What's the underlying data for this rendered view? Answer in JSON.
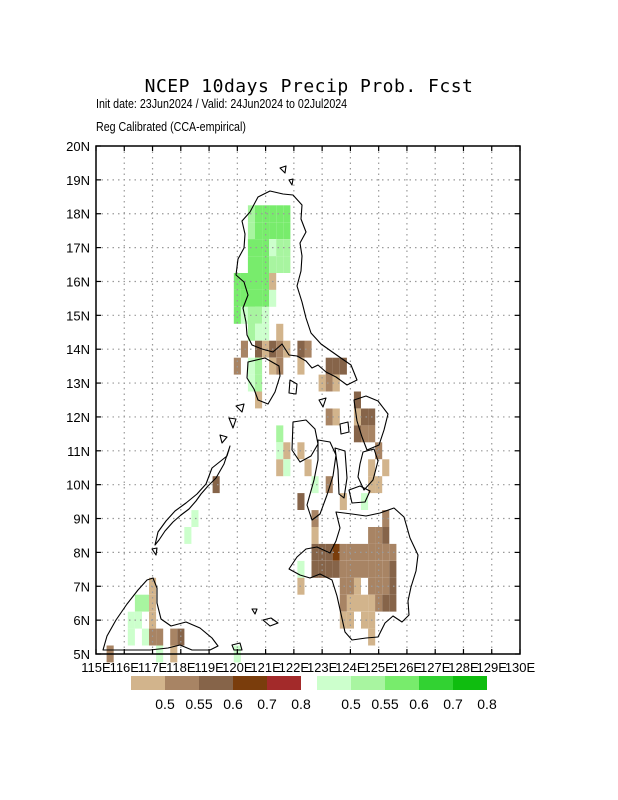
{
  "title": "NCEP 10days Precip Prob. Fcst",
  "subtitle_line1": "Init date: 23Jun2024 / Valid: 24Jun2024 to 02Jul2024",
  "subtitle_line2": "Reg Calibrated (CCA-empirical)",
  "map": {
    "lon_range": [
      115,
      130
    ],
    "lat_range": [
      5,
      20
    ],
    "lon_ticks": [
      "115E",
      "116E",
      "117E",
      "118E",
      "119E",
      "120E",
      "121E",
      "122E",
      "123E",
      "124E",
      "125E",
      "126E",
      "127E",
      "128E",
      "129E",
      "130E"
    ],
    "lat_ticks": [
      "5N",
      "6N",
      "7N",
      "8N",
      "9N",
      "10N",
      "11N",
      "12N",
      "13N",
      "14N",
      "15N",
      "16N",
      "17N",
      "18N",
      "19N",
      "20N"
    ],
    "grid": true
  },
  "dry_legend": {
    "labels": [
      "0.5",
      "0.55",
      "0.6",
      "0.7",
      "0.8"
    ],
    "colors": [
      "#d2b48c",
      "#a88464",
      "#866449",
      "#7a3d0c",
      "#a32a2a"
    ]
  },
  "wet_legend": {
    "labels": [
      "0.5",
      "0.55",
      "0.6",
      "0.7",
      "0.8"
    ],
    "colors": [
      "#ccffcc",
      "#a8f5a0",
      "#78ec6c",
      "#32d232",
      "#0fbd0f"
    ]
  },
  "cells_note_lon_lat_level": "cells: [lon, lat, category] where category 1..5 = dry legend index, -1..-5 = wet legend index",
  "cells": [
    [
      120.5,
      17.5,
      -2
    ],
    [
      120.5,
      17.0,
      -3
    ],
    [
      120.5,
      16.5,
      -3
    ],
    [
      120.5,
      16.0,
      -3
    ],
    [
      120.5,
      15.5,
      -3
    ],
    [
      120.5,
      15.0,
      -3
    ],
    [
      120.5,
      18.0,
      -2
    ],
    [
      120.75,
      18.0,
      -3
    ],
    [
      121.0,
      18.0,
      -3
    ],
    [
      121.25,
      18.0,
      -3
    ],
    [
      121.5,
      18.0,
      -3
    ],
    [
      121.75,
      18.0,
      -3
    ],
    [
      120.75,
      17.5,
      -3
    ],
    [
      121.0,
      17.5,
      -3
    ],
    [
      121.25,
      17.5,
      -3
    ],
    [
      121.5,
      17.5,
      -3
    ],
    [
      121.75,
      17.5,
      -3
    ],
    [
      120.75,
      17.0,
      -3
    ],
    [
      121.0,
      17.0,
      -3
    ],
    [
      121.25,
      17.0,
      -1
    ],
    [
      121.5,
      17.0,
      -2
    ],
    [
      121.75,
      17.0,
      -2
    ],
    [
      120.75,
      16.5,
      -3
    ],
    [
      121.0,
      16.5,
      -3
    ],
    [
      121.25,
      16.5,
      -2
    ],
    [
      121.5,
      16.5,
      -2
    ],
    [
      121.75,
      16.5,
      -2
    ],
    [
      120.0,
      16.0,
      -3
    ],
    [
      120.25,
      16.0,
      -3
    ],
    [
      120.75,
      16.0,
      -3
    ],
    [
      121.0,
      16.0,
      -3
    ],
    [
      121.25,
      16.0,
      1
    ],
    [
      120.0,
      15.5,
      -3
    ],
    [
      120.25,
      15.5,
      -3
    ],
    [
      120.75,
      15.5,
      -3
    ],
    [
      121.0,
      15.5,
      -3
    ],
    [
      121.25,
      15.5,
      -1
    ],
    [
      120.0,
      15.0,
      -3
    ],
    [
      120.25,
      15.0,
      -1
    ],
    [
      120.5,
      15.0,
      -2
    ],
    [
      120.75,
      15.0,
      -2
    ],
    [
      121.0,
      15.0,
      -1
    ],
    [
      120.5,
      14.5,
      -2
    ],
    [
      120.75,
      14.5,
      -1
    ],
    [
      121.0,
      14.5,
      -1
    ],
    [
      121.5,
      14.5,
      1
    ],
    [
      120.25,
      14.0,
      2
    ],
    [
      120.75,
      14.0,
      3
    ],
    [
      121.0,
      14.0,
      1
    ],
    [
      121.25,
      14.0,
      3
    ],
    [
      121.5,
      14.0,
      2
    ],
    [
      121.75,
      14.0,
      1
    ],
    [
      122.25,
      14.0,
      3
    ],
    [
      122.5,
      14.0,
      2
    ],
    [
      120.0,
      13.5,
      2
    ],
    [
      120.5,
      13.5,
      -1
    ],
    [
      120.75,
      13.5,
      -2
    ],
    [
      121.25,
      13.5,
      1
    ],
    [
      121.5,
      13.5,
      2
    ],
    [
      122.25,
      13.5,
      1
    ],
    [
      123.25,
      13.5,
      3
    ],
    [
      123.5,
      13.5,
      3
    ],
    [
      123.75,
      13.5,
      3
    ],
    [
      120.5,
      13.0,
      -1
    ],
    [
      120.75,
      13.0,
      -2
    ],
    [
      123.0,
      13.0,
      1
    ],
    [
      123.25,
      13.0,
      2
    ],
    [
      123.5,
      13.0,
      1
    ],
    [
      120.75,
      12.5,
      1
    ],
    [
      124.25,
      12.5,
      3
    ],
    [
      123.25,
      12.0,
      2
    ],
    [
      123.5,
      12.0,
      1
    ],
    [
      124.25,
      12.0,
      1
    ],
    [
      124.5,
      12.0,
      3
    ],
    [
      124.75,
      12.0,
      3
    ],
    [
      124.25,
      11.5,
      3
    ],
    [
      124.5,
      11.5,
      2
    ],
    [
      124.75,
      11.5,
      2
    ],
    [
      121.5,
      11.5,
      -2
    ],
    [
      121.5,
      11.0,
      -1
    ],
    [
      121.75,
      11.0,
      1
    ],
    [
      122.25,
      11.0,
      1
    ],
    [
      125.0,
      11.0,
      2
    ],
    [
      121.5,
      10.5,
      1
    ],
    [
      121.75,
      10.5,
      -1
    ],
    [
      122.5,
      10.5,
      1
    ],
    [
      124.75,
      10.5,
      1
    ],
    [
      125.25,
      10.5,
      1
    ],
    [
      119.25,
      10.0,
      3
    ],
    [
      122.75,
      10.0,
      -1
    ],
    [
      123.25,
      10.0,
      2
    ],
    [
      124.75,
      10.0,
      1
    ],
    [
      125.0,
      10.0,
      1
    ],
    [
      122.25,
      9.5,
      3
    ],
    [
      123.75,
      9.5,
      1
    ],
    [
      124.5,
      9.5,
      -1
    ],
    [
      118.5,
      9.0,
      -1
    ],
    [
      122.75,
      9.0,
      2
    ],
    [
      125.25,
      9.0,
      2
    ],
    [
      118.25,
      8.5,
      -1
    ],
    [
      122.75,
      8.5,
      1
    ],
    [
      124.75,
      8.5,
      2
    ],
    [
      125.0,
      8.5,
      2
    ],
    [
      125.25,
      8.5,
      3
    ],
    [
      122.75,
      8.0,
      3
    ],
    [
      123.0,
      8.0,
      3
    ],
    [
      123.25,
      8.0,
      3
    ],
    [
      123.5,
      8.0,
      4
    ],
    [
      123.75,
      8.0,
      2
    ],
    [
      124.0,
      8.0,
      2
    ],
    [
      124.25,
      8.0,
      2
    ],
    [
      124.5,
      8.0,
      2
    ],
    [
      124.75,
      8.0,
      2
    ],
    [
      125.0,
      8.0,
      2
    ],
    [
      125.25,
      8.0,
      2
    ],
    [
      125.5,
      8.0,
      2
    ],
    [
      122.25,
      7.5,
      -1
    ],
    [
      122.75,
      7.5,
      3
    ],
    [
      123.0,
      7.5,
      3
    ],
    [
      123.25,
      7.5,
      3
    ],
    [
      123.5,
      7.5,
      3
    ],
    [
      123.75,
      7.5,
      2
    ],
    [
      124.0,
      7.5,
      2
    ],
    [
      124.25,
      7.5,
      2
    ],
    [
      124.5,
      7.5,
      2
    ],
    [
      124.75,
      7.5,
      2
    ],
    [
      125.0,
      7.5,
      2
    ],
    [
      125.25,
      7.5,
      2
    ],
    [
      125.5,
      7.5,
      3
    ],
    [
      117.0,
      7.0,
      1
    ],
    [
      122.25,
      7.0,
      1
    ],
    [
      123.75,
      7.0,
      2
    ],
    [
      124.0,
      7.0,
      2
    ],
    [
      124.25,
      7.0,
      1
    ],
    [
      124.75,
      7.0,
      2
    ],
    [
      125.0,
      7.0,
      2
    ],
    [
      125.25,
      7.0,
      2
    ],
    [
      125.5,
      7.0,
      3
    ],
    [
      116.5,
      6.5,
      -2
    ],
    [
      116.75,
      6.5,
      -2
    ],
    [
      117.0,
      6.5,
      1
    ],
    [
      123.75,
      6.5,
      2
    ],
    [
      124.0,
      6.5,
      1
    ],
    [
      124.25,
      6.5,
      1
    ],
    [
      124.5,
      6.5,
      1
    ],
    [
      124.75,
      6.5,
      1
    ],
    [
      125.0,
      6.5,
      2
    ],
    [
      125.25,
      6.5,
      3
    ],
    [
      125.5,
      6.5,
      3
    ],
    [
      116.25,
      6.0,
      -1
    ],
    [
      116.5,
      6.0,
      -1
    ],
    [
      117.0,
      6.0,
      1
    ],
    [
      123.75,
      6.0,
      1
    ],
    [
      124.0,
      6.0,
      1
    ],
    [
      124.5,
      6.0,
      1
    ],
    [
      124.75,
      6.0,
      1
    ],
    [
      116.25,
      5.5,
      -1
    ],
    [
      116.75,
      5.5,
      -1
    ],
    [
      117.0,
      5.5,
      2
    ],
    [
      117.25,
      5.5,
      2
    ],
    [
      117.75,
      5.5,
      2
    ],
    [
      118.0,
      5.5,
      3
    ],
    [
      124.75,
      5.5,
      1
    ],
    [
      115.5,
      5.0,
      2
    ],
    [
      117.25,
      5.0,
      -1
    ],
    [
      117.75,
      5.0,
      1
    ],
    [
      120.0,
      5.0,
      -1
    ]
  ]
}
